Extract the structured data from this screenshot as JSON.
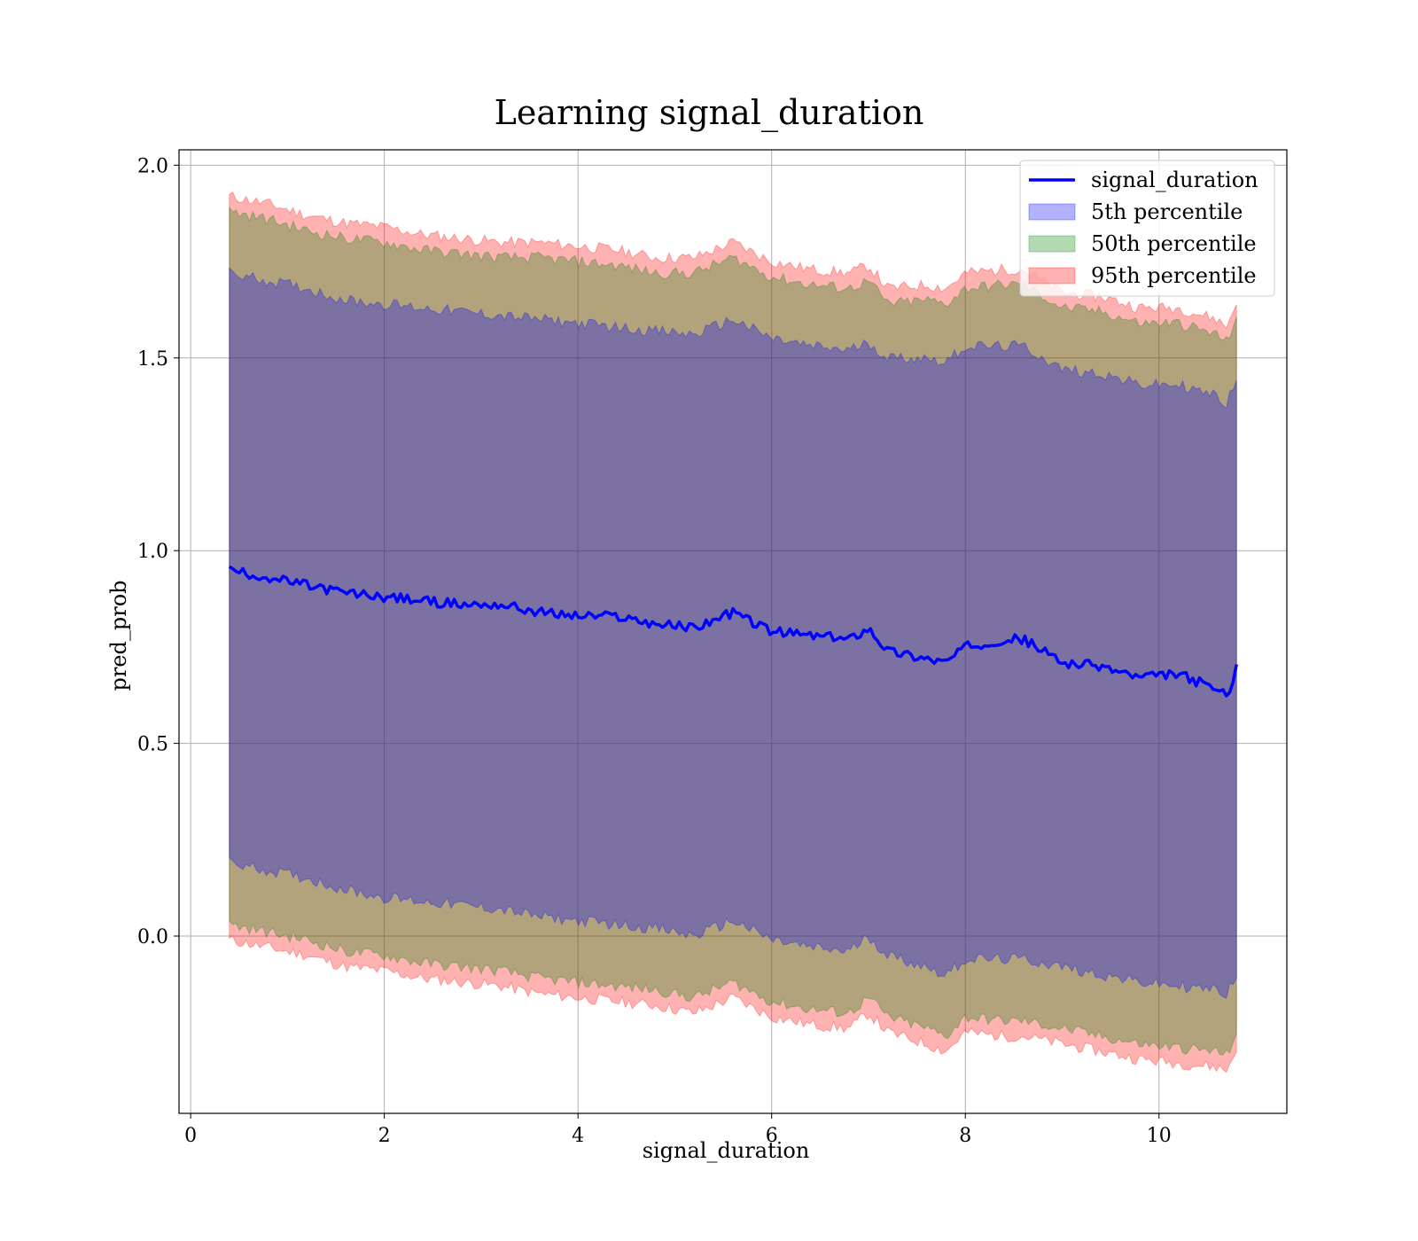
{
  "chart_data": {
    "type": "area",
    "title": "Learning signal_duration",
    "xlabel": "signal_duration",
    "ylabel": "pred_prob",
    "xlim": [
      -0.12,
      11.32
    ],
    "ylim": [
      -0.46,
      2.04
    ],
    "xticks": [
      0,
      2,
      4,
      6,
      8,
      10
    ],
    "yticks": [
      0.0,
      0.5,
      1.0,
      1.5,
      2.0
    ],
    "xtick_labels": [
      "0",
      "2",
      "4",
      "6",
      "8",
      "10"
    ],
    "ytick_labels": [
      "0.0",
      "0.5",
      "1.0",
      "1.5",
      "2.0"
    ],
    "grid": true,
    "legend_position": "top-right",
    "x": [
      0.4,
      0.8,
      1.2,
      1.6,
      2.0,
      2.4,
      2.8,
      3.2,
      3.6,
      4.0,
      4.4,
      4.8,
      5.2,
      5.6,
      6.0,
      6.4,
      6.8,
      7.0,
      7.2,
      7.6,
      7.8,
      8.0,
      8.4,
      8.6,
      9.0,
      9.4,
      9.8,
      10.2,
      10.6,
      10.7,
      10.8
    ],
    "series": [
      {
        "name": "signal_duration",
        "kind": "line",
        "color": "#0000ff",
        "values": [
          0.95,
          0.93,
          0.91,
          0.89,
          0.88,
          0.87,
          0.86,
          0.86,
          0.84,
          0.83,
          0.83,
          0.81,
          0.8,
          0.84,
          0.79,
          0.78,
          0.77,
          0.8,
          0.74,
          0.72,
          0.71,
          0.75,
          0.77,
          0.77,
          0.71,
          0.7,
          0.67,
          0.68,
          0.64,
          0.62,
          0.7
        ]
      },
      {
        "name": "5th percentile",
        "kind": "band",
        "color": "#0000ff",
        "lower": [
          0.19,
          0.17,
          0.15,
          0.12,
          0.1,
          0.09,
          0.08,
          0.07,
          0.05,
          0.04,
          0.03,
          0.02,
          0.0,
          0.04,
          -0.01,
          -0.03,
          -0.04,
          0.0,
          -0.05,
          -0.08,
          -0.1,
          -0.06,
          -0.06,
          -0.06,
          -0.08,
          -0.1,
          -0.12,
          -0.13,
          -0.14,
          -0.15,
          -0.1
        ],
        "upper": [
          1.72,
          1.7,
          1.68,
          1.65,
          1.64,
          1.63,
          1.62,
          1.61,
          1.6,
          1.59,
          1.58,
          1.57,
          1.56,
          1.6,
          1.55,
          1.53,
          1.52,
          1.54,
          1.5,
          1.5,
          1.49,
          1.53,
          1.53,
          1.53,
          1.47,
          1.46,
          1.43,
          1.43,
          1.4,
          1.38,
          1.45
        ]
      },
      {
        "name": "50th percentile",
        "kind": "band",
        "color": "#008000",
        "lower": [
          0.03,
          0.01,
          -0.01,
          -0.04,
          -0.05,
          -0.07,
          -0.08,
          -0.09,
          -0.11,
          -0.12,
          -0.13,
          -0.14,
          -0.16,
          -0.12,
          -0.17,
          -0.19,
          -0.2,
          -0.16,
          -0.21,
          -0.24,
          -0.26,
          -0.21,
          -0.22,
          -0.22,
          -0.24,
          -0.26,
          -0.28,
          -0.29,
          -0.3,
          -0.31,
          -0.25
        ],
        "upper": [
          1.88,
          1.86,
          1.83,
          1.81,
          1.8,
          1.78,
          1.77,
          1.76,
          1.76,
          1.75,
          1.74,
          1.72,
          1.72,
          1.76,
          1.71,
          1.69,
          1.68,
          1.7,
          1.64,
          1.65,
          1.64,
          1.68,
          1.69,
          1.69,
          1.63,
          1.62,
          1.59,
          1.59,
          1.56,
          1.54,
          1.61
        ]
      },
      {
        "name": "95th percentile",
        "kind": "band",
        "color": "#ff0000",
        "lower": [
          -0.01,
          -0.03,
          -0.05,
          -0.08,
          -0.09,
          -0.11,
          -0.12,
          -0.13,
          -0.15,
          -0.16,
          -0.17,
          -0.18,
          -0.2,
          -0.16,
          -0.21,
          -0.23,
          -0.24,
          -0.2,
          -0.25,
          -0.28,
          -0.3,
          -0.25,
          -0.26,
          -0.26,
          -0.28,
          -0.3,
          -0.32,
          -0.33,
          -0.34,
          -0.35,
          -0.29
        ],
        "upper": [
          1.92,
          1.9,
          1.87,
          1.85,
          1.84,
          1.82,
          1.81,
          1.8,
          1.8,
          1.79,
          1.78,
          1.76,
          1.76,
          1.8,
          1.75,
          1.73,
          1.72,
          1.74,
          1.68,
          1.69,
          1.68,
          1.72,
          1.73,
          1.73,
          1.67,
          1.66,
          1.63,
          1.63,
          1.6,
          1.58,
          1.65
        ]
      }
    ]
  }
}
